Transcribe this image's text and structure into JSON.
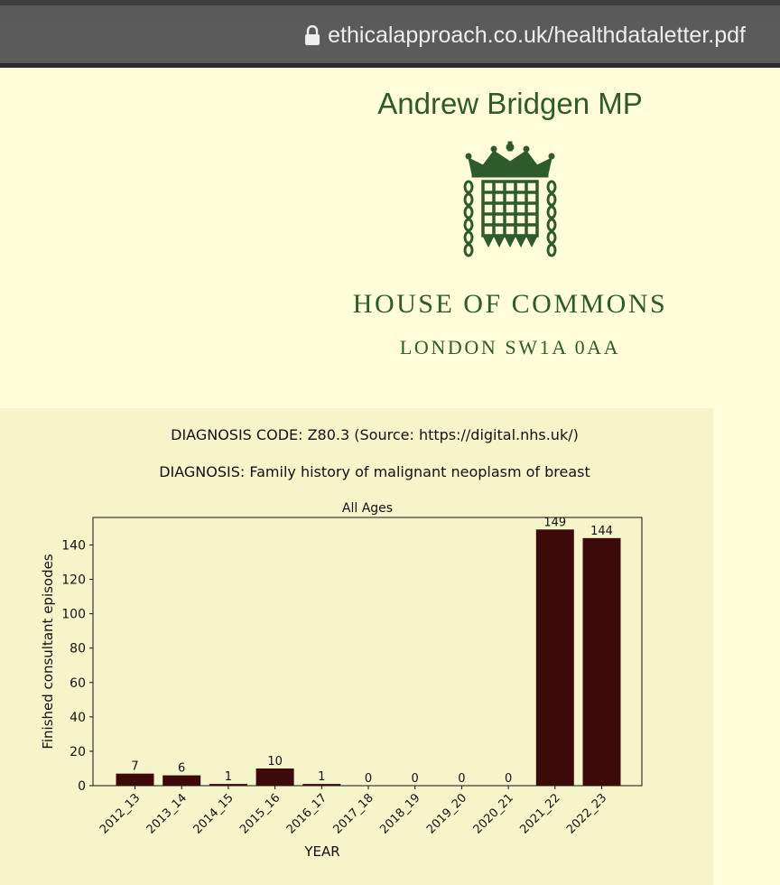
{
  "browser": {
    "url": "ethicalapproach.co.uk/healthdataletter.pdf",
    "lock_icon": "lock-icon"
  },
  "letterhead": {
    "name": "Andrew Bridgen MP",
    "emblem_icon": "portcullis-icon",
    "house": "HOUSE OF COMMONS",
    "address": "LONDON SW1A 0AA",
    "color": "#2d5b2b"
  },
  "chart_header": {
    "code_line": "DIAGNOSIS CODE: Z80.3 (Source: https://digital.nhs.uk/)",
    "diagnosis_line": "DIAGNOSIS: Family history of malignant neoplasm of breast"
  },
  "chart_data": {
    "type": "bar",
    "title": "All Ages",
    "xlabel": "YEAR",
    "ylabel": "Finished consultant episodes",
    "categories": [
      "2012_13",
      "2013_14",
      "2014_15",
      "2015_16",
      "2016_17",
      "2017_18",
      "2018_19",
      "2019_20",
      "2020_21",
      "2021_22",
      "2022_23"
    ],
    "values": [
      7,
      6,
      1,
      10,
      1,
      0,
      0,
      0,
      0,
      149,
      144
    ],
    "data_labels": [
      "7",
      "6",
      "1",
      "10",
      "1",
      "0",
      "0",
      "0",
      "0",
      "149",
      "144"
    ],
    "yticks": [
      0,
      20,
      40,
      60,
      80,
      100,
      120,
      140
    ],
    "ylim": [
      0,
      156
    ],
    "grid": false,
    "bar_color": "#3d0a0a"
  }
}
